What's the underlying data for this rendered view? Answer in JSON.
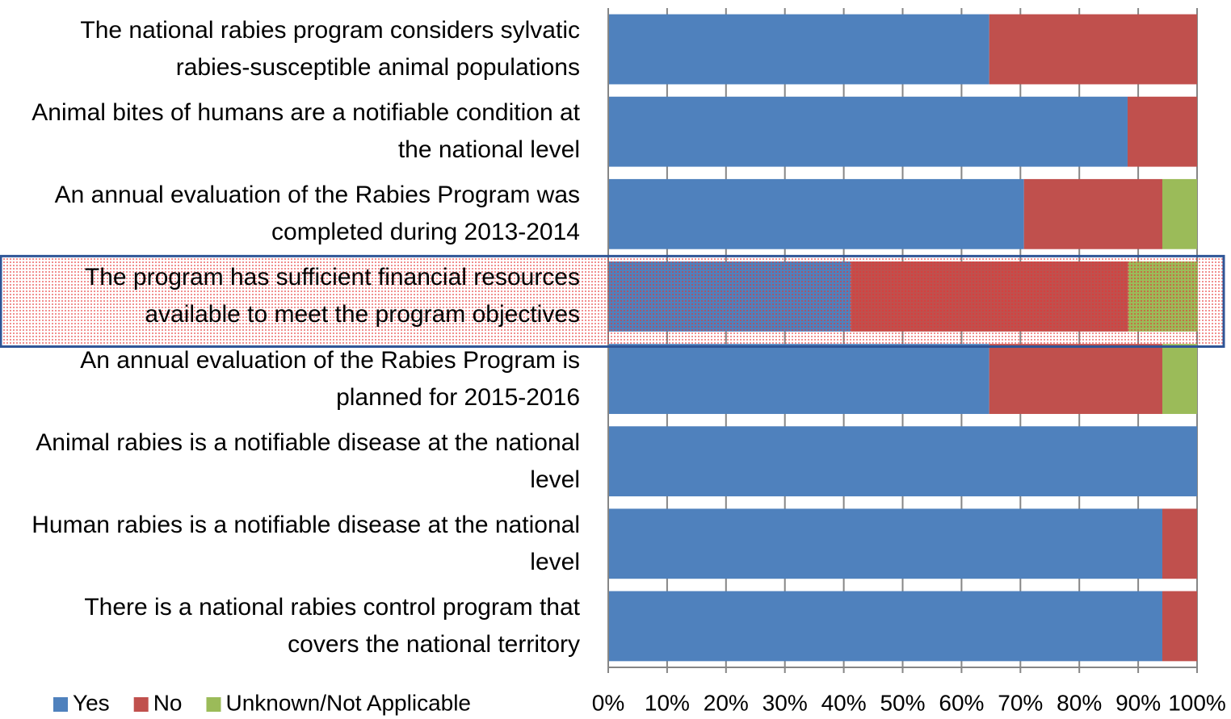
{
  "chart_data": {
    "type": "stacked_barh",
    "categories": [
      "The national rabies program considers sylvatic rabies-susceptible animal populations",
      "Animal bites of humans are a notifiable condition at the national level",
      "An annual evaluation of the Rabies Program was completed during 2013-2014",
      "The program has sufficient financial resources available to meet the program objectives",
      "An annual evaluation of the Rabies Program is planned for 2015-2016",
      "Animal rabies is a notifiable disease at the national level",
      "Human rabies is a notifiable disease at the national level",
      "There is a national rabies control program that covers the national territory"
    ],
    "series": [
      {
        "name": "Yes",
        "color": "#4f81bd",
        "values": [
          64.7,
          88.2,
          70.6,
          41.2,
          64.7,
          100,
          94.1,
          94.1
        ]
      },
      {
        "name": "No",
        "color": "#c0504d",
        "values": [
          35.3,
          11.8,
          23.5,
          47.1,
          29.4,
          0,
          5.9,
          5.9
        ]
      },
      {
        "name": "Unknown/Not Applicable",
        "color": "#9bbb59",
        "values": [
          0,
          0,
          5.9,
          11.8,
          5.9,
          0,
          0,
          0
        ]
      }
    ],
    "xlim": [
      0,
      100
    ],
    "xticks": [
      {
        "value": 0,
        "label": "0%"
      },
      {
        "value": 10,
        "label": "10%"
      },
      {
        "value": 20,
        "label": "20%"
      },
      {
        "value": 30,
        "label": "30%"
      },
      {
        "value": 40,
        "label": "40%"
      },
      {
        "value": 50,
        "label": "50%"
      },
      {
        "value": 60,
        "label": "60%"
      },
      {
        "value": 70,
        "label": "70%"
      },
      {
        "value": 80,
        "label": "80%"
      },
      {
        "value": 90,
        "label": "90%"
      },
      {
        "value": 100,
        "label": "100%"
      }
    ],
    "grid": true,
    "legend": "bottom-left"
  }
}
